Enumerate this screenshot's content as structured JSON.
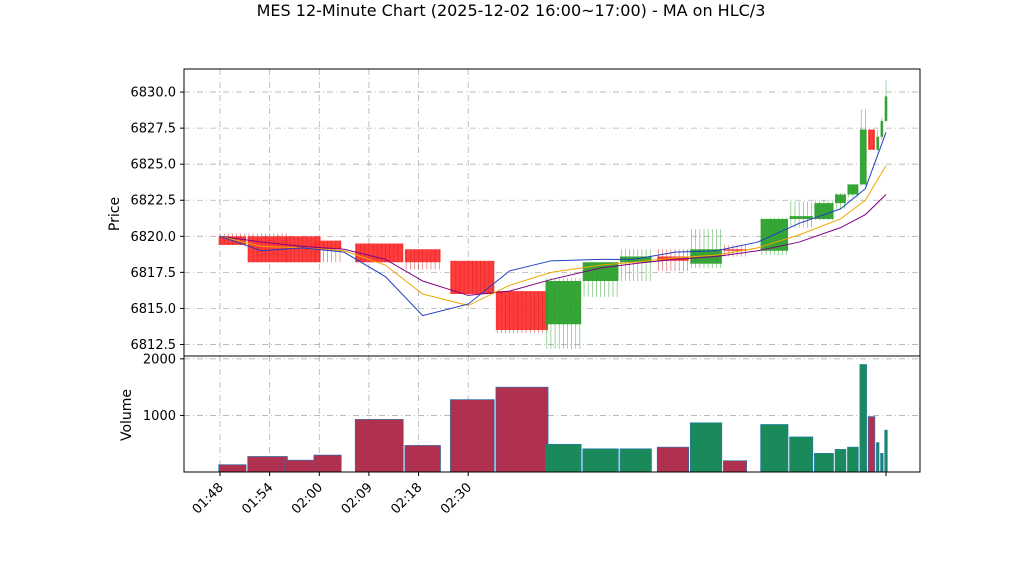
{
  "chart_data": {
    "type": "ohlc-bar",
    "title": "MES 12-Minute Chart (2025-12-02 16:00~17:00) - MA on HLC/3",
    "ylabel_price": "Price",
    "ylabel_volume": "Volume",
    "price_ticks": [
      "6812.5",
      "6815.0",
      "6817.5",
      "6820.0",
      "6822.5",
      "6825.0",
      "6827.5",
      "6830.0"
    ],
    "price_tick_values": [
      6812.5,
      6815.0,
      6817.5,
      6820.0,
      6822.5,
      6825.0,
      6827.5,
      6830.0
    ],
    "volume_ticks": [
      "1000",
      "2000"
    ],
    "volume_tick_values": [
      1000,
      2000
    ],
    "x_ticks": [
      "01:48",
      "01:54",
      "02:00",
      "02:09",
      "02:18",
      "02:30"
    ],
    "x_tick_index": [
      0,
      12,
      24,
      36,
      48,
      60
    ],
    "ylim_price": [
      6811.7,
      6831.6
    ],
    "ylim_volume": [
      0,
      2050
    ],
    "grid": true,
    "colors": {
      "up": "#2ca02c",
      "down": "#ff3333",
      "ma_fast": "#1f3fbf",
      "ma_mid": "#f0a500",
      "ma_slow": "#800080",
      "volume_edge": "#1f77b4"
    },
    "bars": [
      {
        "o": 6820.0,
        "h": 6820.2,
        "l": 6819.4,
        "c": 6819.4,
        "v": 130
      },
      {
        "o": 6820.0,
        "h": 6820.2,
        "l": 6818.2,
        "c": 6818.2,
        "v": 275
      },
      {
        "o": 6820.0,
        "h": 6820.0,
        "l": 6818.2,
        "c": 6818.2,
        "v": 210
      },
      {
        "o": 6819.7,
        "h": 6819.7,
        "l": 6818.2,
        "c": 6819.1,
        "v": 300
      },
      {
        "o": 6819.5,
        "h": 6819.5,
        "l": 6818.2,
        "c": 6818.2,
        "v": 930
      },
      {
        "o": 6819.1,
        "h": 6819.1,
        "l": 6817.7,
        "c": 6818.2,
        "v": 470
      },
      {
        "o": 6818.3,
        "h": 6818.3,
        "l": 6816.0,
        "c": 6816.0,
        "v": 1280
      },
      {
        "o": 6816.2,
        "h": 6816.2,
        "l": 6813.3,
        "c": 6813.5,
        "v": 1500
      },
      {
        "o": 6813.9,
        "h": 6817.1,
        "l": 6812.2,
        "c": 6816.9,
        "v": 490
      },
      {
        "o": 6816.9,
        "h": 6818.2,
        "l": 6815.8,
        "c": 6818.2,
        "v": 410
      },
      {
        "o": 6818.2,
        "h": 6819.1,
        "l": 6816.9,
        "c": 6818.6,
        "v": 410
      },
      {
        "o": 6818.6,
        "h": 6819.1,
        "l": 6817.6,
        "c": 6818.3,
        "v": 440
      },
      {
        "o": 6818.1,
        "h": 6820.5,
        "l": 6817.8,
        "c": 6819.1,
        "v": 870
      },
      {
        "o": 6819.1,
        "h": 6819.4,
        "l": 6818.6,
        "c": 6819.0,
        "v": 200
      },
      {
        "o": 6819.0,
        "h": 6821.3,
        "l": 6818.7,
        "c": 6821.2,
        "v": 840
      },
      {
        "o": 6821.2,
        "h": 6822.4,
        "l": 6820.6,
        "c": 6821.4,
        "v": 620
      },
      {
        "o": 6821.2,
        "h": 6822.5,
        "l": 6821.1,
        "c": 6822.3,
        "v": 330
      },
      {
        "o": 6822.3,
        "h": 6823.0,
        "l": 6821.9,
        "c": 6822.9,
        "v": 400
      },
      {
        "o": 6822.9,
        "h": 6823.6,
        "l": 6822.7,
        "c": 6823.6,
        "v": 440
      },
      {
        "o": 6823.6,
        "h": 6828.8,
        "l": 6823.5,
        "c": 6827.4,
        "v": 1900
      },
      {
        "o": 6827.4,
        "h": 6827.4,
        "l": 6826.0,
        "c": 6826.0,
        "v": 980
      },
      {
        "o": 6826.0,
        "h": 6827.4,
        "l": 6825.9,
        "c": 6826.9,
        "v": 520
      },
      {
        "o": 6826.9,
        "h": 6828.2,
        "l": 6826.7,
        "c": 6828.0,
        "v": 330
      },
      {
        "o": 6828.0,
        "h": 6830.8,
        "l": 6827.9,
        "c": 6829.7,
        "v": 740
      }
    ],
    "bar_index_ranges": [
      [
        0,
        6
      ],
      [
        7,
        16
      ],
      [
        16,
        24
      ],
      [
        23,
        29
      ],
      [
        33,
        44
      ],
      [
        45,
        53
      ],
      [
        56,
        66
      ],
      [
        67,
        79
      ],
      [
        79,
        87
      ],
      [
        88,
        96
      ],
      [
        97,
        104
      ],
      [
        106,
        113
      ],
      [
        114,
        121
      ],
      [
        122,
        127
      ],
      [
        131,
        137
      ],
      [
        138,
        143
      ],
      [
        144,
        148
      ],
      [
        149,
        151
      ],
      [
        152,
        154
      ],
      [
        155,
        156
      ],
      [
        157,
        158
      ],
      [
        159,
        159
      ],
      [
        160,
        160
      ],
      [
        161,
        161
      ]
    ],
    "ma_fast": [
      [
        0,
        6820.0
      ],
      [
        10,
        6819.0
      ],
      [
        20,
        6819.2
      ],
      [
        30,
        6818.9
      ],
      [
        40,
        6817.2
      ],
      [
        49,
        6814.5
      ],
      [
        60,
        6815.3
      ],
      [
        70,
        6817.6
      ],
      [
        80,
        6818.3
      ],
      [
        92,
        6818.4
      ],
      [
        100,
        6818.4
      ],
      [
        110,
        6818.9
      ],
      [
        120,
        6819.0
      ],
      [
        130,
        6819.6
      ],
      [
        140,
        6820.9
      ],
      [
        150,
        6821.9
      ],
      [
        156,
        6823.3
      ],
      [
        161,
        6827.2
      ]
    ],
    "ma_mid": [
      [
        0,
        6820.0
      ],
      [
        10,
        6819.3
      ],
      [
        20,
        6819.2
      ],
      [
        30,
        6819.0
      ],
      [
        40,
        6818.0
      ],
      [
        49,
        6816.0
      ],
      [
        60,
        6815.2
      ],
      [
        70,
        6816.6
      ],
      [
        80,
        6817.5
      ],
      [
        92,
        6818.0
      ],
      [
        100,
        6818.2
      ],
      [
        110,
        6818.5
      ],
      [
        120,
        6818.7
      ],
      [
        130,
        6819.2
      ],
      [
        140,
        6820.1
      ],
      [
        150,
        6821.2
      ],
      [
        156,
        6822.5
      ],
      [
        161,
        6824.9
      ]
    ],
    "ma_slow": [
      [
        0,
        6820.0
      ],
      [
        10,
        6819.6
      ],
      [
        20,
        6819.3
      ],
      [
        30,
        6819.1
      ],
      [
        40,
        6818.4
      ],
      [
        49,
        6816.9
      ],
      [
        60,
        6815.9
      ],
      [
        70,
        6816.2
      ],
      [
        80,
        6817.0
      ],
      [
        92,
        6817.8
      ],
      [
        100,
        6818.1
      ],
      [
        110,
        6818.4
      ],
      [
        120,
        6818.6
      ],
      [
        130,
        6819.0
      ],
      [
        140,
        6819.6
      ],
      [
        150,
        6820.6
      ],
      [
        156,
        6821.5
      ],
      [
        161,
        6822.9
      ]
    ]
  }
}
